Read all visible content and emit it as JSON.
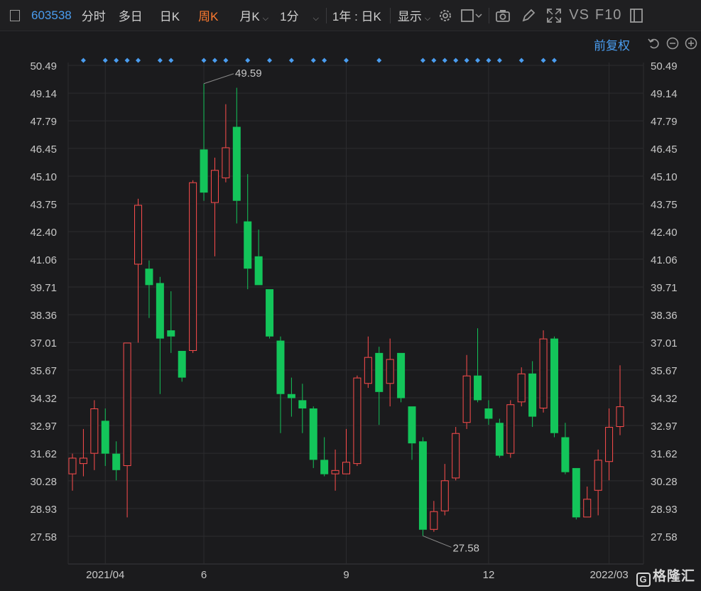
{
  "toolbar": {
    "code": "603538",
    "items": [
      "分时",
      "多日",
      "日K",
      "周K",
      "月K",
      "1分",
      "1年 : 日K",
      "显示"
    ],
    "active_index": 3,
    "vs": "VS",
    "f10": "F10"
  },
  "adjust_label": "前复权",
  "brand_text": "格隆汇",
  "brand_mark": "G",
  "colors": {
    "up": "#ff4d4d",
    "down": "#13c55a",
    "accent": "#4a9df0",
    "active": "#ff7a2f",
    "background": "#1b1b1d"
  },
  "icons": [
    "settings-icon",
    "square-icon",
    "camera-icon",
    "pen-icon",
    "expand-icon",
    "window-icon",
    "undo-icon",
    "zoom-out-icon",
    "zoom-in-icon"
  ],
  "chart_data": {
    "type": "candlestick",
    "y_ticks": [
      "50.49",
      "49.14",
      "47.79",
      "46.45",
      "45.10",
      "43.75",
      "42.40",
      "41.06",
      "39.71",
      "38.36",
      "37.01",
      "35.67",
      "34.32",
      "32.97",
      "31.62",
      "30.28",
      "28.93",
      "27.58"
    ],
    "ylim": [
      26.5,
      51.0
    ],
    "x_ticks": [
      {
        "label": "2021/04",
        "index": 3
      },
      {
        "label": "6",
        "index": 12
      },
      {
        "label": "9",
        "index": 25
      },
      {
        "label": "12",
        "index": 38
      },
      {
        "label": "2022/03",
        "index": 49
      }
    ],
    "high_label": "49.59",
    "low_label": "27.58",
    "event_markers": [
      1,
      3,
      4,
      5,
      6,
      8,
      9,
      12,
      13,
      14,
      16,
      18,
      20,
      22,
      23,
      25,
      28,
      32,
      33,
      34,
      35,
      36,
      37,
      38,
      39,
      41,
      43,
      44
    ],
    "candles": [
      {
        "o": 30.6,
        "h": 31.6,
        "l": 29.8,
        "c": 31.4
      },
      {
        "o": 31.1,
        "h": 32.8,
        "l": 30.5,
        "c": 31.4
      },
      {
        "o": 31.6,
        "h": 34.2,
        "l": 30.8,
        "c": 33.8
      },
      {
        "o": 33.2,
        "h": 33.8,
        "l": 31.0,
        "c": 31.6
      },
      {
        "o": 31.6,
        "h": 32.2,
        "l": 30.3,
        "c": 30.8
      },
      {
        "o": 31.0,
        "h": 37.0,
        "l": 28.5,
        "c": 37.0
      },
      {
        "o": 40.8,
        "h": 44.0,
        "l": 37.0,
        "c": 43.7
      },
      {
        "o": 40.6,
        "h": 41.0,
        "l": 38.2,
        "c": 39.8
      },
      {
        "o": 39.9,
        "h": 40.2,
        "l": 34.5,
        "c": 37.2
      },
      {
        "o": 37.6,
        "h": 39.5,
        "l": 36.5,
        "c": 37.3
      },
      {
        "o": 36.6,
        "h": 36.6,
        "l": 35.1,
        "c": 35.3
      },
      {
        "o": 36.6,
        "h": 44.9,
        "l": 36.5,
        "c": 44.8
      },
      {
        "o": 46.4,
        "h": 49.6,
        "l": 43.9,
        "c": 44.3
      },
      {
        "o": 43.8,
        "h": 46.0,
        "l": 41.2,
        "c": 45.4
      },
      {
        "o": 45.0,
        "h": 48.6,
        "l": 44.8,
        "c": 46.5
      },
      {
        "o": 47.5,
        "h": 49.4,
        "l": 42.8,
        "c": 43.9
      },
      {
        "o": 42.9,
        "h": 45.2,
        "l": 39.6,
        "c": 40.6
      },
      {
        "o": 41.2,
        "h": 42.5,
        "l": 39.8,
        "c": 39.8
      },
      {
        "o": 39.6,
        "h": 39.6,
        "l": 37.2,
        "c": 37.3
      },
      {
        "o": 37.1,
        "h": 37.3,
        "l": 32.6,
        "c": 34.5
      },
      {
        "o": 34.5,
        "h": 35.3,
        "l": 33.4,
        "c": 34.3
      },
      {
        "o": 34.2,
        "h": 35.0,
        "l": 32.6,
        "c": 33.8
      },
      {
        "o": 33.8,
        "h": 33.9,
        "l": 30.9,
        "c": 31.3
      },
      {
        "o": 31.3,
        "h": 32.4,
        "l": 30.5,
        "c": 30.6
      },
      {
        "o": 30.6,
        "h": 31.8,
        "l": 29.8,
        "c": 30.8
      },
      {
        "o": 30.6,
        "h": 32.8,
        "l": 30.6,
        "c": 31.2
      },
      {
        "o": 31.1,
        "h": 35.4,
        "l": 31.0,
        "c": 35.3
      },
      {
        "o": 35.0,
        "h": 37.3,
        "l": 34.8,
        "c": 36.3
      },
      {
        "o": 36.5,
        "h": 36.8,
        "l": 33.0,
        "c": 34.6
      },
      {
        "o": 35.0,
        "h": 37.2,
        "l": 33.9,
        "c": 36.2
      },
      {
        "o": 36.5,
        "h": 36.5,
        "l": 34.1,
        "c": 34.3
      },
      {
        "o": 33.9,
        "h": 33.9,
        "l": 31.3,
        "c": 32.1
      },
      {
        "o": 32.2,
        "h": 32.4,
        "l": 27.6,
        "c": 27.9
      },
      {
        "o": 27.9,
        "h": 29.3,
        "l": 27.8,
        "c": 28.8
      },
      {
        "o": 28.8,
        "h": 31.1,
        "l": 28.6,
        "c": 30.3
      },
      {
        "o": 30.4,
        "h": 32.9,
        "l": 30.3,
        "c": 32.6
      },
      {
        "o": 33.1,
        "h": 36.4,
        "l": 32.8,
        "c": 35.4
      },
      {
        "o": 35.4,
        "h": 37.7,
        "l": 34.1,
        "c": 34.2
      },
      {
        "o": 33.8,
        "h": 34.2,
        "l": 33.0,
        "c": 33.3
      },
      {
        "o": 33.1,
        "h": 33.3,
        "l": 31.4,
        "c": 31.5
      },
      {
        "o": 31.6,
        "h": 34.2,
        "l": 31.4,
        "c": 34.0
      },
      {
        "o": 34.1,
        "h": 35.8,
        "l": 33.9,
        "c": 35.5
      },
      {
        "o": 35.5,
        "h": 36.1,
        "l": 32.9,
        "c": 33.4
      },
      {
        "o": 33.8,
        "h": 37.6,
        "l": 33.6,
        "c": 37.2
      },
      {
        "o": 37.2,
        "h": 37.3,
        "l": 32.4,
        "c": 32.6
      },
      {
        "o": 32.4,
        "h": 33.1,
        "l": 30.6,
        "c": 30.7
      },
      {
        "o": 30.9,
        "h": 30.9,
        "l": 28.4,
        "c": 28.5
      },
      {
        "o": 28.5,
        "h": 30.0,
        "l": 28.5,
        "c": 29.4
      },
      {
        "o": 29.8,
        "h": 31.8,
        "l": 28.6,
        "c": 31.3
      },
      {
        "o": 31.2,
        "h": 33.8,
        "l": 30.3,
        "c": 32.9
      },
      {
        "o": 32.9,
        "h": 35.9,
        "l": 32.5,
        "c": 33.9
      }
    ]
  }
}
